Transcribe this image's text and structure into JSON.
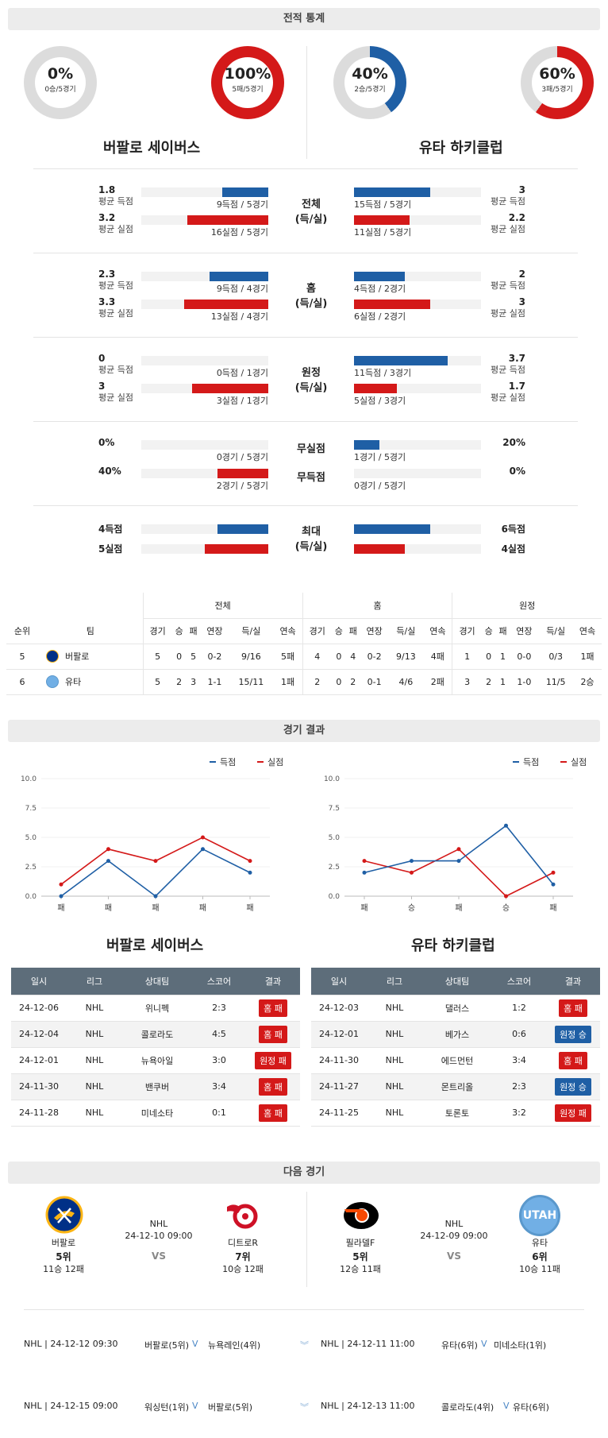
{
  "sections": {
    "stats": "전적 통계",
    "results": "경기 결과",
    "next": "다음 경기"
  },
  "teams": {
    "left": "버팔로 세이버스",
    "right": "유타 하키클럽"
  },
  "donuts": [
    {
      "pct": "0%",
      "sub": "0승/5경기",
      "value": 0,
      "color": "#d41919"
    },
    {
      "pct": "100%",
      "sub": "5패/5경기",
      "value": 100,
      "color": "#d41919"
    },
    {
      "pct": "40%",
      "sub": "2승/5경기",
      "value": 40,
      "color": "#1f5fa5"
    },
    {
      "pct": "60%",
      "sub": "3패/5경기",
      "value": 60,
      "color": "#d41919"
    }
  ],
  "stat_groups": [
    {
      "title": "전체\n(득/실)",
      "left": [
        {
          "v": "1.8",
          "l": "평균 득점",
          "bar": "9득점 / 5경기"
        },
        {
          "v": "3.2",
          "l": "평균 실점",
          "bar": "16실점 / 5경기"
        }
      ],
      "right": [
        {
          "v": "3",
          "l": "평균 득점",
          "bar": "15득점 / 5경기"
        },
        {
          "v": "2.2",
          "l": "평균 실점",
          "bar": "11실점 / 5경기"
        }
      ]
    },
    {
      "title": "홈\n(득/실)",
      "left": [
        {
          "v": "2.3",
          "l": "평균 득점",
          "bar": "9득점 / 4경기"
        },
        {
          "v": "3.3",
          "l": "평균 실점",
          "bar": "13실점 / 4경기"
        }
      ],
      "right": [
        {
          "v": "2",
          "l": "평균 득점",
          "bar": "4득점 / 2경기"
        },
        {
          "v": "3",
          "l": "평균 실점",
          "bar": "6실점 / 2경기"
        }
      ]
    },
    {
      "title": "원정\n(득/실)",
      "left": [
        {
          "v": "0",
          "l": "평균 득점",
          "bar": "0득점 / 1경기"
        },
        {
          "v": "3",
          "l": "평균 실점",
          "bar": "3실점 / 1경기"
        }
      ],
      "right": [
        {
          "v": "3.7",
          "l": "평균 득점",
          "bar": "11득점 / 3경기"
        },
        {
          "v": "1.7",
          "l": "평균 실점",
          "bar": "5실점 / 3경기"
        }
      ]
    }
  ],
  "shutout": {
    "t1": "무실점",
    "t2": "무득점",
    "left": [
      {
        "v": "0%",
        "bar": "0경기 / 5경기"
      },
      {
        "v": "40%",
        "bar": "2경기 / 5경기"
      }
    ],
    "right": [
      {
        "v": "20%",
        "bar": "1경기 / 5경기"
      },
      {
        "v": "0%",
        "bar": "0경기 / 5경기"
      }
    ]
  },
  "max": {
    "title": "최대\n(득/실)",
    "left": [
      "4득점",
      "5실점"
    ],
    "right": [
      "6득점",
      "4실점"
    ]
  },
  "standings": {
    "groups": [
      "전체",
      "홈",
      "원정"
    ],
    "cols": [
      "순위",
      "팀",
      "경기",
      "승",
      "패",
      "연장",
      "득/실",
      "연속",
      "경기",
      "승",
      "패",
      "연장",
      "득/실",
      "연속",
      "경기",
      "승",
      "패",
      "연장",
      "득/실",
      "연속"
    ],
    "rows": [
      [
        "5",
        "버팔로",
        "5",
        "0",
        "5",
        "0-2",
        "9/16",
        "5패",
        "4",
        "0",
        "4",
        "0-2",
        "9/13",
        "4패",
        "1",
        "0",
        "1",
        "0-0",
        "0/3",
        "1패"
      ],
      [
        "6",
        "유타",
        "5",
        "2",
        "3",
        "1-1",
        "15/11",
        "1패",
        "2",
        "0",
        "2",
        "0-1",
        "4/6",
        "2패",
        "3",
        "2",
        "1",
        "1-0",
        "11/5",
        "2승"
      ]
    ]
  },
  "charts": {
    "legend": [
      "득점",
      "실점"
    ],
    "yticks": [
      "10.0",
      "7.5",
      "5.0",
      "2.5",
      "0.0"
    ],
    "left": {
      "x": [
        "패",
        "패",
        "패",
        "패",
        "패"
      ],
      "score": [
        0,
        3,
        0,
        4,
        2
      ],
      "concede": [
        1,
        4,
        3,
        5,
        3
      ]
    },
    "right": {
      "x": [
        "패",
        "승",
        "패",
        "승",
        "패"
      ],
      "score": [
        2,
        3,
        3,
        6,
        1
      ],
      "concede": [
        3,
        2,
        4,
        0,
        2
      ]
    }
  },
  "games": {
    "head": [
      "일시",
      "리그",
      "상대팀",
      "스코어",
      "결과"
    ],
    "left": [
      [
        "24-12-06",
        "NHL",
        "위니펙",
        "2:3",
        "홈 패",
        "home"
      ],
      [
        "24-12-04",
        "NHL",
        "콜로라도",
        "4:5",
        "홈 패",
        "home"
      ],
      [
        "24-12-01",
        "NHL",
        "뉴욕아일",
        "3:0",
        "원정 패",
        "red"
      ],
      [
        "24-11-30",
        "NHL",
        "밴쿠버",
        "3:4",
        "홈 패",
        "home"
      ],
      [
        "24-11-28",
        "NHL",
        "미네소타",
        "0:1",
        "홈 패",
        "home"
      ]
    ],
    "right": [
      [
        "24-12-03",
        "NHL",
        "댈러스",
        "1:2",
        "홈 패",
        "home"
      ],
      [
        "24-12-01",
        "NHL",
        "베가스",
        "0:6",
        "원정 승",
        "away"
      ],
      [
        "24-11-30",
        "NHL",
        "에드먼턴",
        "3:4",
        "홈 패",
        "home"
      ],
      [
        "24-11-27",
        "NHL",
        "몬트리올",
        "2:3",
        "원정 승",
        "away"
      ],
      [
        "24-11-25",
        "NHL",
        "토론토",
        "3:2",
        "원정 패",
        "red"
      ]
    ]
  },
  "next": {
    "left": {
      "league": "NHL",
      "date": "24-12-10 09:00",
      "vs": "VS",
      "home": {
        "name": "버팔로",
        "rank": "5위",
        "rec": "11승 12패"
      },
      "away": {
        "name": "디트로R",
        "rank": "7위",
        "rec": "10승 12패"
      }
    },
    "right": {
      "league": "NHL",
      "date": "24-12-09 09:00",
      "vs": "VS",
      "home": {
        "name": "필라델F",
        "rank": "5위",
        "rec": "12승 11패"
      },
      "away": {
        "name": "유타",
        "rank": "6위",
        "rec": "10승 11패"
      },
      "logo_text": "UTAH"
    }
  },
  "footer": [
    {
      "l1": "NHL | 24-12-12 09:30",
      "l2": "버팔로(5위)",
      "l3": "V",
      "l4": "뉴욕레인(4위)",
      "r1": "NHL | 24-12-11 11:00",
      "r2": "유타(6위)",
      "r3": "V",
      "r4": "미네소타(1위)"
    },
    {
      "l1": "NHL | 24-12-15 09:00",
      "l2": "워싱턴(1위)",
      "l3": "V",
      "l4": "버팔로(5위)",
      "r1": "NHL | 24-12-13 11:00",
      "r2": "콜로라도(4위)",
      "r3": "V",
      "r4": "유타(6위)"
    }
  ],
  "colors": {
    "blue": "#1f5fa5",
    "red": "#d41919",
    "header": "#5d6d7a"
  }
}
